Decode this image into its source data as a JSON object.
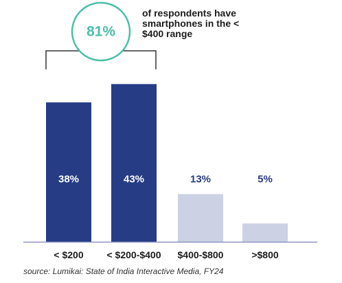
{
  "chart_data": {
    "type": "bar",
    "categories": [
      "< $200",
      "< $200-$400",
      "$400-$800",
      ">$800"
    ],
    "values": [
      38,
      43,
      13,
      5
    ],
    "value_labels": [
      "38%",
      "43%",
      "13%",
      "5%"
    ],
    "highlighted": [
      true,
      true,
      false,
      false
    ],
    "ylim": [
      0,
      50
    ],
    "title": "",
    "xlabel": "",
    "ylabel": "",
    "grid": false
  },
  "callout": {
    "value": "81%",
    "text": "of respondents have smartphones in the < $400 range"
  },
  "source": "source: Lumikai: State of India Interactive Media, FY24",
  "colors": {
    "highlight_bar": "#263c85",
    "muted_bar": "#ccd2e3",
    "highlight_label": "#ffffff",
    "muted_label": "#263c85",
    "accent": "#4bbfa8",
    "axis": "#8c93c6",
    "bracket": "#333333"
  }
}
